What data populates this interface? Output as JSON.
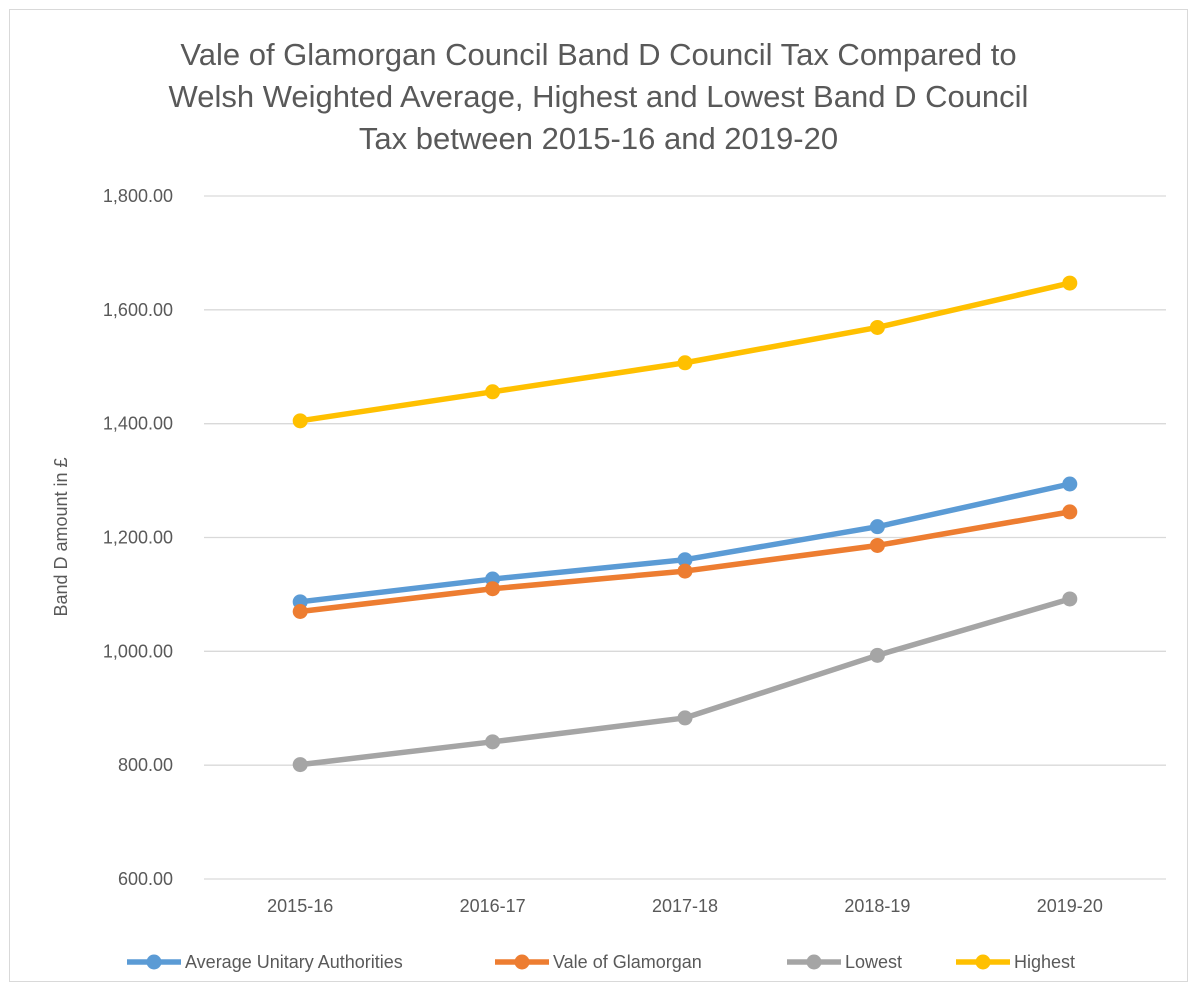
{
  "chart_data": {
    "type": "line",
    "title_lines": [
      "Vale of Glamorgan Council Band D Council Tax Compared to",
      "Welsh Weighted Average, Highest and Lowest Band D Council",
      "Tax between 2015-16 and 2019-20"
    ],
    "ylabel": "Band D amount in £",
    "xlabel": "",
    "ylim": [
      600,
      1800
    ],
    "yticks": [
      600,
      800,
      1000,
      1200,
      1400,
      1600,
      1800
    ],
    "ytick_labels": [
      "600.00",
      "800.00",
      "1,000.00",
      "1,200.00",
      "1,400.00",
      "1,600.00",
      "1,800.00"
    ],
    "categories": [
      "2015-16",
      "2016-17",
      "2017-18",
      "2018-19",
      "2019-20"
    ],
    "grid": true,
    "legend_position": "bottom",
    "series": [
      {
        "name": "Average Unitary Authorities",
        "color": "#5b9bd5",
        "values": [
          1087,
          1127,
          1161,
          1219,
          1294
        ]
      },
      {
        "name": "Vale of Glamorgan",
        "color": "#ed7d31",
        "values": [
          1070,
          1110,
          1141,
          1186,
          1245
        ]
      },
      {
        "name": "Lowest",
        "color": "#a5a5a5",
        "values": [
          801,
          841,
          883,
          993,
          1092
        ]
      },
      {
        "name": "Highest",
        "color": "#ffc000",
        "values": [
          1405,
          1456,
          1507,
          1569,
          1647
        ]
      }
    ]
  }
}
